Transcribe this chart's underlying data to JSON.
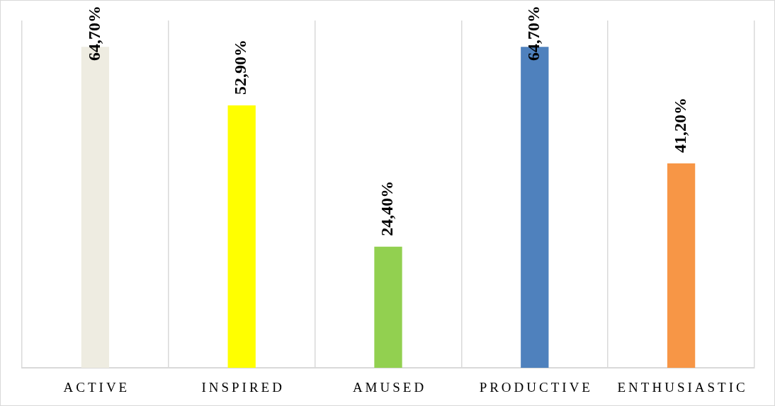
{
  "chart_data": {
    "type": "bar",
    "categories": [
      "ACTIVE",
      "INSPIRED",
      "AMUSED",
      "PRODUCTIVE",
      "ENTHUSIASTIC"
    ],
    "values": [
      64.7,
      52.9,
      24.4,
      64.7,
      41.2
    ],
    "colors": [
      "#eeece1",
      "#ffff00",
      "#92d050",
      "#4f81bd",
      "#f79646"
    ],
    "value_labels": [
      "64,70%",
      "52,90%",
      "24,40%",
      "64,70%",
      "41,20%"
    ],
    "grid": "x",
    "tick_labels": "x"
  }
}
